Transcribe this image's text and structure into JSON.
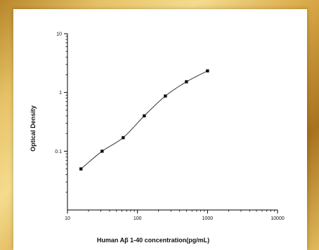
{
  "chart_data": {
    "type": "scatter",
    "title": "",
    "xlabel": "Human Aβ 1-40 concentration(pg/mL)",
    "ylabel": "Optical Density",
    "xscale": "log",
    "yscale": "log",
    "xlim": [
      10,
      10000
    ],
    "ylim": [
      0.01,
      10
    ],
    "x_ticks": [
      {
        "value": 10,
        "label": "10"
      },
      {
        "value": 100,
        "label": "100"
      },
      {
        "value": 1000,
        "label": "1000"
      },
      {
        "value": 10000,
        "label": "10000"
      }
    ],
    "y_ticks": [
      {
        "value": 0.1,
        "label": "0.1"
      },
      {
        "value": 1,
        "label": "1"
      },
      {
        "value": 10,
        "label": "10"
      }
    ],
    "grid": false,
    "fit_curve": true,
    "series": [
      {
        "x": [
          15.6,
          31.25,
          62.5,
          125,
          250,
          500,
          1000
        ],
        "y": [
          0.05,
          0.1,
          0.17,
          0.4,
          0.87,
          1.52,
          2.33
        ]
      }
    ],
    "colors": {
      "marker": "#111111",
      "curve": "#333333",
      "axis": "#000000"
    }
  }
}
